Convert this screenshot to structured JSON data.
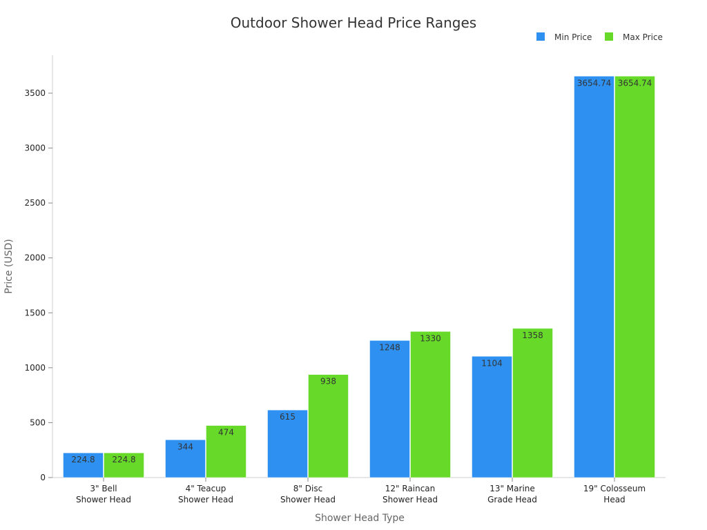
{
  "chart_data": {
    "type": "bar",
    "title": "Outdoor Shower Head Price Ranges",
    "xlabel": "Shower Head Type",
    "ylabel": "Price (USD)",
    "ylim": [
      0,
      3800
    ],
    "yticks": [
      0,
      500,
      1000,
      1500,
      2000,
      2500,
      3000,
      3500
    ],
    "grid": false,
    "legend_position": "top-right",
    "categories": [
      [
        "3\" Bell",
        "Shower Head"
      ],
      [
        "4\" Teacup",
        "Shower Head"
      ],
      [
        "8\" Disc",
        "Shower Head"
      ],
      [
        "12\" Raincan",
        "Shower Head"
      ],
      [
        "13\" Marine",
        "Grade Head"
      ],
      [
        "19\" Colosseum",
        "Head"
      ]
    ],
    "series": [
      {
        "name": "Min Price",
        "color": "#2e91f2",
        "values": [
          224.8,
          344,
          615,
          1248,
          1104,
          3654.74
        ]
      },
      {
        "name": "Max Price",
        "color": "#66d929",
        "values": [
          224.8,
          474,
          938,
          1330,
          1358,
          3654.74
        ]
      }
    ]
  }
}
